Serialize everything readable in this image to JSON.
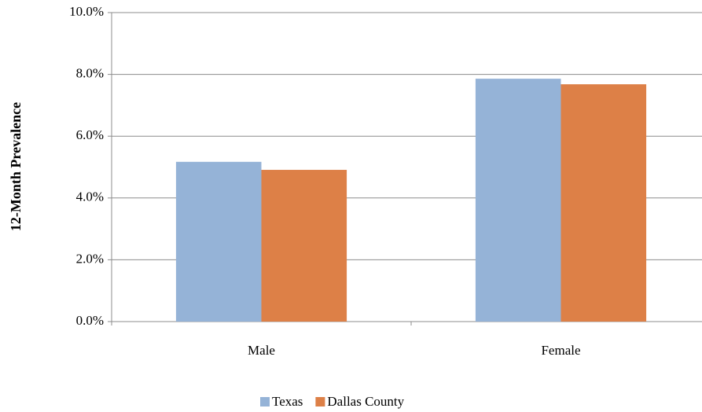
{
  "chart_data": {
    "type": "bar",
    "y_label": "12-Month Prevalence",
    "categories": [
      "Male",
      "Female"
    ],
    "series": [
      {
        "name": "Texas",
        "color": "#95b3d7",
        "values": [
          5.17,
          7.86
        ]
      },
      {
        "name": "Dallas County",
        "color": "#dd8047",
        "values": [
          4.91,
          7.68
        ]
      }
    ],
    "ylim": [
      0,
      10
    ],
    "yticks": [
      {
        "value": 0,
        "label": "0.0%"
      },
      {
        "value": 2,
        "label": "2.0%"
      },
      {
        "value": 4,
        "label": "4.0%"
      },
      {
        "value": 6,
        "label": "6.0%"
      },
      {
        "value": 8,
        "label": "8.0%"
      },
      {
        "value": 10,
        "label": "10.0%"
      }
    ],
    "grid": true,
    "legend": "bottom"
  }
}
